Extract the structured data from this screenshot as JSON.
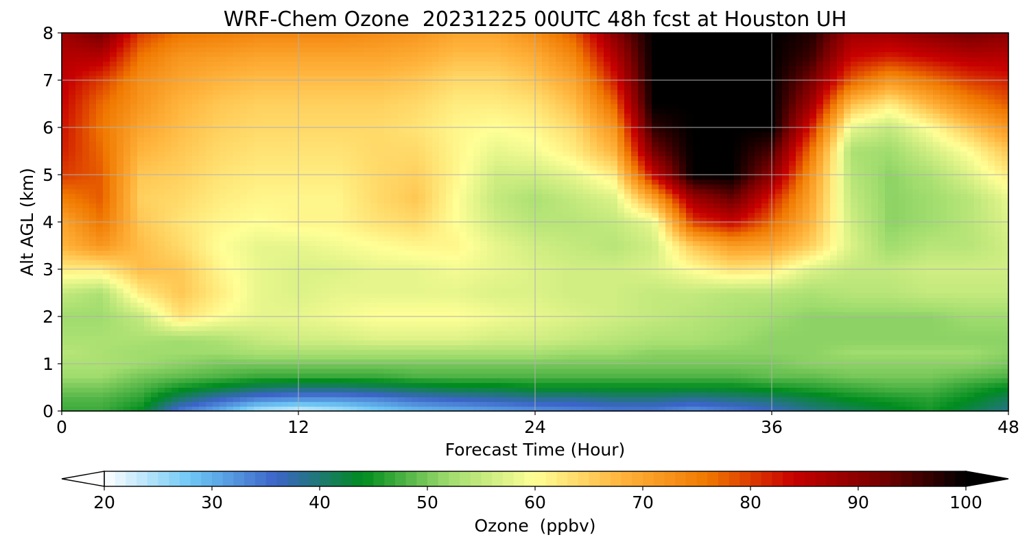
{
  "chart_data": {
    "type": "heatmap",
    "title": "WRF-Chem Ozone  20231225 00UTC 48h fcst at Houston UH",
    "xlabel": "Forecast Time (Hour)",
    "ylabel": "Alt AGL (km)",
    "xlim": [
      0,
      48
    ],
    "ylim": [
      0,
      8
    ],
    "x_ticks": [
      "0",
      "12",
      "24",
      "36",
      "48"
    ],
    "y_ticks": [
      "0",
      "1",
      "2",
      "3",
      "4",
      "5",
      "6",
      "7",
      "8"
    ],
    "grid": true,
    "colorbar": {
      "label": "Ozone  (ppbv)",
      "range": [
        20,
        100
      ],
      "ticks": [
        "20",
        "30",
        "40",
        "50",
        "60",
        "70",
        "80",
        "90",
        "100"
      ],
      "extend": "both",
      "colors": [
        "#ffffff",
        "#6ec8f5",
        "#3c64c8",
        "#008c1e",
        "#a0dc6e",
        "#ffff96",
        "#ffb43c",
        "#f07800",
        "#c80000",
        "#780000",
        "#000000"
      ]
    },
    "x_hours": [
      0,
      2,
      4,
      6,
      8,
      10,
      12,
      14,
      16,
      18,
      20,
      22,
      24,
      26,
      28,
      30,
      32,
      34,
      36,
      38,
      40,
      42,
      44,
      46,
      48
    ],
    "y_km": [
      0,
      0.25,
      0.5,
      0.75,
      1,
      1.25,
      1.5,
      2,
      2.5,
      3,
      3.5,
      4,
      4.5,
      5,
      5.5,
      6,
      6.5,
      7,
      7.5,
      8
    ],
    "values": [
      [
        47,
        47,
        44,
        34,
        30,
        24,
        22,
        24,
        27,
        29,
        30,
        31,
        32,
        33,
        34,
        34,
        32,
        34,
        36,
        39,
        41,
        43,
        45,
        42,
        39
      ],
      [
        48,
        48,
        46,
        40,
        36,
        33,
        32,
        32,
        33,
        35,
        36,
        37,
        38,
        38,
        39,
        39,
        38,
        39,
        40,
        42,
        44,
        45,
        46,
        44,
        41
      ],
      [
        50,
        50,
        48,
        45,
        43,
        41,
        40,
        40,
        41,
        42,
        43,
        43,
        44,
        44,
        44,
        44,
        44,
        44,
        45,
        46,
        47,
        48,
        48,
        46,
        44
      ],
      [
        52,
        52,
        50,
        49,
        48,
        47,
        47,
        47,
        47,
        48,
        48,
        48,
        48,
        48,
        48,
        48,
        48,
        48,
        49,
        49,
        50,
        50,
        50,
        49,
        48
      ],
      [
        53,
        53,
        52,
        51,
        50,
        50,
        50,
        50,
        50,
        50,
        50,
        50,
        50,
        50,
        50,
        50,
        50,
        50,
        50,
        51,
        51,
        51,
        51,
        51,
        50
      ],
      [
        54,
        53,
        52,
        52,
        52,
        53,
        53,
        53,
        53,
        53,
        53,
        53,
        53,
        52,
        52,
        51,
        51,
        51,
        51,
        51,
        52,
        52,
        52,
        52,
        51
      ],
      [
        53,
        53,
        53,
        52,
        53,
        55,
        56,
        56,
        57,
        57,
        57,
        56,
        56,
        55,
        54,
        53,
        53,
        52,
        51,
        51,
        51,
        51,
        51,
        51,
        51
      ],
      [
        52,
        52,
        55,
        63,
        60,
        58,
        58,
        59,
        60,
        60,
        60,
        59,
        58,
        57,
        56,
        55,
        54,
        53,
        52,
        51,
        51,
        51,
        51,
        52,
        52
      ],
      [
        55,
        53,
        62,
        66,
        62,
        58,
        57,
        58,
        58,
        58,
        58,
        57,
        57,
        56,
        56,
        55,
        55,
        54,
        54,
        53,
        54,
        54,
        55,
        55,
        55
      ],
      [
        62,
        62,
        67,
        66,
        61,
        58,
        57,
        57,
        58,
        58,
        59,
        58,
        57,
        56,
        56,
        57,
        60,
        63,
        62,
        57,
        55,
        55,
        56,
        56,
        56
      ],
      [
        68,
        72,
        67,
        64,
        60,
        58,
        58,
        59,
        60,
        61,
        61,
        58,
        56,
        55,
        54,
        56,
        66,
        71,
        70,
        65,
        57,
        52,
        54,
        54,
        56
      ],
      [
        70,
        76,
        66,
        63,
        61,
        60,
        61,
        61,
        63,
        64,
        60,
        56,
        54,
        54,
        55,
        58,
        80,
        84,
        77,
        68,
        56,
        51,
        52,
        54,
        57
      ],
      [
        75,
        78,
        65,
        64,
        62,
        61,
        61,
        61,
        64,
        66,
        60,
        55,
        53,
        55,
        57,
        70,
        88,
        93,
        82,
        70,
        55,
        51,
        52,
        54,
        58
      ],
      [
        80,
        78,
        66,
        65,
        63,
        62,
        62,
        62,
        64,
        65,
        61,
        56,
        56,
        58,
        62,
        84,
        100,
        100,
        90,
        72,
        54,
        51,
        53,
        57,
        62
      ],
      [
        82,
        77,
        68,
        66,
        64,
        63,
        63,
        63,
        64,
        64,
        61,
        58,
        59,
        62,
        68,
        92,
        100,
        100,
        95,
        76,
        53,
        52,
        56,
        60,
        66
      ],
      [
        83,
        76,
        70,
        67,
        65,
        64,
        64,
        64,
        64,
        63,
        61,
        60,
        61,
        64,
        72,
        97,
        100,
        100,
        100,
        82,
        58,
        55,
        60,
        66,
        72
      ],
      [
        84,
        77,
        72,
        68,
        66,
        65,
        65,
        65,
        65,
        64,
        62,
        62,
        63,
        67,
        77,
        100,
        100,
        100,
        100,
        88,
        67,
        62,
        68,
        74,
        78
      ],
      [
        85,
        80,
        73,
        70,
        68,
        67,
        67,
        67,
        67,
        66,
        64,
        64,
        66,
        70,
        82,
        100,
        100,
        100,
        100,
        92,
        78,
        72,
        76,
        80,
        82
      ],
      [
        86,
        86,
        76,
        72,
        71,
        70,
        70,
        70,
        70,
        69,
        67,
        67,
        69,
        74,
        86,
        100,
        100,
        100,
        100,
        96,
        84,
        82,
        84,
        86,
        86
      ],
      [
        88,
        92,
        80,
        76,
        75,
        74,
        74,
        74,
        73,
        72,
        70,
        70,
        73,
        78,
        90,
        100,
        100,
        100,
        100,
        98,
        88,
        88,
        90,
        92,
        90
      ]
    ]
  }
}
